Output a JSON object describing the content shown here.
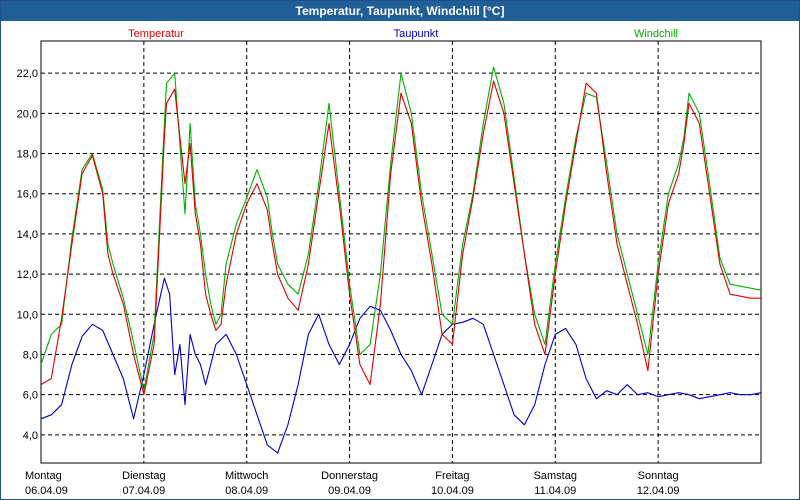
{
  "window": {
    "title": "Temperatur, Taupunkt, Windchill [°C]"
  },
  "colors": {
    "titlebar": "#1f5e96",
    "grid": "#000000",
    "temperatur": "#e00000",
    "taupunkt": "#0000c8",
    "windchill": "#00b000"
  },
  "chart_data": {
    "type": "line",
    "title": "Temperatur, Taupunkt, Windchill [°C]",
    "ylim": [
      2.6,
      23.6
    ],
    "yticks": [
      "4,0",
      "6,0",
      "8,0",
      "10,0",
      "12,0",
      "14,0",
      "16,0",
      "18,0",
      "20,0",
      "22,0"
    ],
    "ytick_values": [
      4,
      6,
      8,
      10,
      12,
      14,
      16,
      18,
      20,
      22
    ],
    "x_range_days": [
      0,
      7
    ],
    "xticks": [
      {
        "day": "Montag",
        "date": "06.04.09"
      },
      {
        "day": "Dienstag",
        "date": "07.04.09"
      },
      {
        "day": "Mittwoch",
        "date": "08.04.09"
      },
      {
        "day": "Donnerstag",
        "date": "09.04.09"
      },
      {
        "day": "Freitag",
        "date": "10.04.09"
      },
      {
        "day": "Samstag",
        "date": "11.04.09"
      },
      {
        "day": "Sonntag",
        "date": "12.04.09"
      }
    ],
    "grid": true,
    "series": [
      {
        "name": "Temperatur",
        "color": "#e00000",
        "x": [
          0,
          0.1,
          0.2,
          0.3,
          0.4,
          0.5,
          0.6,
          0.65,
          0.7,
          0.8,
          0.9,
          1.0,
          1.1,
          1.2,
          1.22,
          1.3,
          1.4,
          1.45,
          1.5,
          1.55,
          1.6,
          1.65,
          1.7,
          1.75,
          1.8,
          1.9,
          2.0,
          2.1,
          2.2,
          2.25,
          2.3,
          2.4,
          2.5,
          2.6,
          2.7,
          2.8,
          2.9,
          3.0,
          3.1,
          3.2,
          3.3,
          3.4,
          3.5,
          3.6,
          3.7,
          3.8,
          3.9,
          4.0,
          4.1,
          4.2,
          4.3,
          4.4,
          4.5,
          4.6,
          4.7,
          4.8,
          4.9,
          5.0,
          5.1,
          5.2,
          5.3,
          5.4,
          5.5,
          5.6,
          5.7,
          5.8,
          5.9,
          6.0,
          6.1,
          6.2,
          6.25,
          6.3,
          6.4,
          6.5,
          6.6,
          6.7,
          6.8,
          6.9,
          7.0
        ],
        "values": [
          6.5,
          6.8,
          9.8,
          13.5,
          17.0,
          17.9,
          16.0,
          13.0,
          12.0,
          10.5,
          8.0,
          6.0,
          8.5,
          18.8,
          20.5,
          21.2,
          16.5,
          18.5,
          15.0,
          13.5,
          11.0,
          10.0,
          9.2,
          9.5,
          11.5,
          14.0,
          15.5,
          16.5,
          15.2,
          13.5,
          12.0,
          10.8,
          10.2,
          12.5,
          16.0,
          19.5,
          15.5,
          11.0,
          7.5,
          6.5,
          10.5,
          17.0,
          21.0,
          19.5,
          15.5,
          12.5,
          9.0,
          8.5,
          13.0,
          15.8,
          19.0,
          21.6,
          20.0,
          16.5,
          13.0,
          9.5,
          8.0,
          12.0,
          15.5,
          18.5,
          21.5,
          21.0,
          17.0,
          13.5,
          11.5,
          9.5,
          7.2,
          12.0,
          15.5,
          17.0,
          18.5,
          20.5,
          19.5,
          16.0,
          12.5,
          11.0,
          10.9,
          10.8,
          10.8
        ]
      },
      {
        "name": "Taupunkt",
        "color": "#0000c8",
        "x": [
          0,
          0.1,
          0.2,
          0.3,
          0.4,
          0.5,
          0.6,
          0.7,
          0.8,
          0.9,
          1.0,
          1.1,
          1.2,
          1.25,
          1.3,
          1.35,
          1.4,
          1.45,
          1.5,
          1.55,
          1.6,
          1.7,
          1.8,
          1.9,
          2.0,
          2.1,
          2.2,
          2.3,
          2.4,
          2.5,
          2.6,
          2.7,
          2.8,
          2.9,
          3.0,
          3.1,
          3.2,
          3.3,
          3.4,
          3.5,
          3.6,
          3.7,
          3.8,
          3.9,
          4.0,
          4.1,
          4.2,
          4.3,
          4.4,
          4.5,
          4.6,
          4.7,
          4.8,
          4.9,
          5.0,
          5.1,
          5.2,
          5.3,
          5.4,
          5.5,
          5.6,
          5.7,
          5.8,
          5.9,
          6.0,
          6.1,
          6.2,
          6.3,
          6.4,
          6.5,
          6.6,
          6.7,
          6.8,
          6.9,
          7.0
        ],
        "values": [
          4.8,
          5.0,
          5.5,
          7.5,
          8.9,
          9.5,
          9.2,
          8.0,
          6.8,
          4.8,
          7.0,
          9.5,
          11.8,
          11.0,
          7.0,
          8.5,
          5.5,
          9.0,
          8.0,
          7.5,
          6.5,
          8.5,
          9.0,
          8.0,
          6.5,
          5.0,
          3.5,
          3.1,
          4.5,
          6.5,
          9.0,
          10.0,
          8.5,
          7.5,
          8.5,
          9.8,
          10.4,
          10.2,
          9.2,
          8.0,
          7.2,
          6.0,
          7.5,
          9.0,
          9.5,
          9.6,
          9.8,
          9.5,
          8.0,
          6.5,
          5.0,
          4.5,
          5.5,
          7.5,
          9.0,
          9.3,
          8.5,
          6.8,
          5.8,
          6.2,
          6.0,
          6.5,
          6.0,
          6.1,
          5.9,
          6.0,
          6.1,
          6.0,
          5.8,
          5.9,
          6.0,
          6.1,
          6.0,
          6.0,
          6.1
        ]
      },
      {
        "name": "Windchill",
        "color": "#00b000",
        "x": [
          0,
          0.1,
          0.2,
          0.3,
          0.4,
          0.5,
          0.6,
          0.65,
          0.7,
          0.8,
          0.9,
          1.0,
          1.1,
          1.2,
          1.22,
          1.3,
          1.4,
          1.45,
          1.5,
          1.55,
          1.6,
          1.65,
          1.7,
          1.75,
          1.8,
          1.9,
          2.0,
          2.1,
          2.2,
          2.25,
          2.3,
          2.4,
          2.5,
          2.6,
          2.7,
          2.8,
          2.9,
          3.0,
          3.1,
          3.2,
          3.3,
          3.4,
          3.5,
          3.6,
          3.7,
          3.8,
          3.9,
          4.0,
          4.1,
          4.2,
          4.3,
          4.4,
          4.5,
          4.6,
          4.7,
          4.8,
          4.9,
          5.0,
          5.1,
          5.2,
          5.3,
          5.4,
          5.5,
          5.6,
          5.7,
          5.8,
          5.9,
          6.0,
          6.1,
          6.2,
          6.25,
          6.3,
          6.4,
          6.5,
          6.6,
          6.7,
          6.8,
          6.9,
          7.0
        ],
        "values": [
          7.5,
          9.0,
          9.5,
          13.8,
          17.2,
          18.0,
          16.2,
          13.5,
          12.5,
          10.8,
          8.6,
          6.2,
          9.0,
          19.5,
          21.5,
          22.0,
          15.0,
          19.5,
          15.5,
          14.0,
          12.0,
          10.5,
          9.5,
          10.0,
          12.5,
          14.5,
          15.8,
          17.2,
          15.8,
          14.0,
          12.5,
          11.5,
          11.0,
          13.0,
          16.5,
          20.5,
          16.0,
          11.5,
          8.0,
          8.5,
          12.0,
          17.5,
          22.0,
          20.0,
          16.0,
          13.0,
          10.0,
          9.5,
          13.5,
          16.0,
          19.5,
          22.3,
          20.5,
          16.8,
          13.0,
          10.0,
          8.5,
          12.5,
          15.8,
          18.8,
          21.0,
          20.8,
          17.5,
          14.0,
          12.0,
          10.0,
          8.0,
          12.5,
          16.0,
          17.5,
          18.8,
          21.0,
          20.0,
          16.5,
          12.8,
          11.5,
          11.4,
          11.3,
          11.2
        ]
      }
    ]
  }
}
